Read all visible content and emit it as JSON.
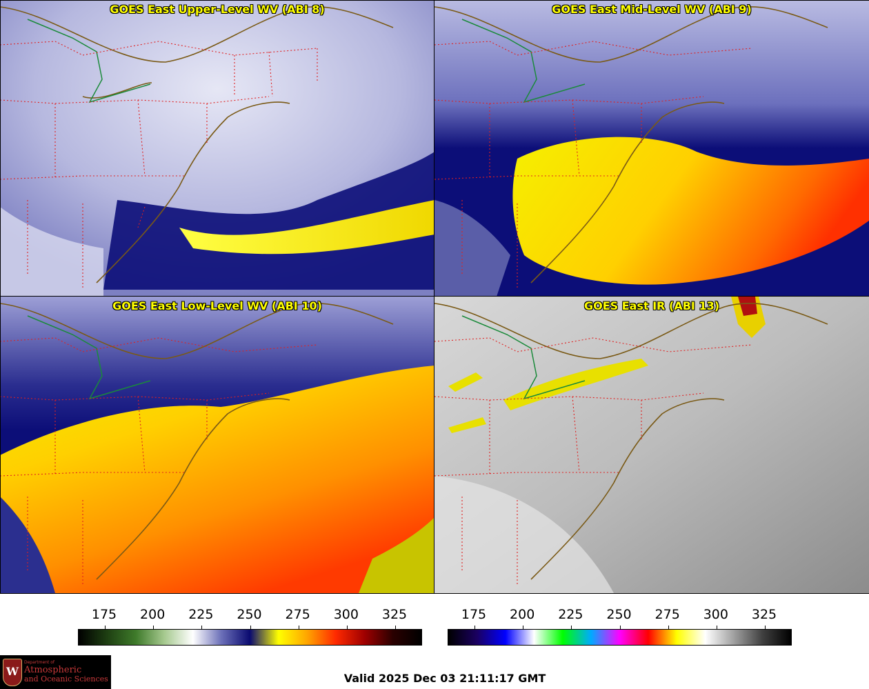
{
  "panels": [
    {
      "title": "GOES East Upper-Level WV (ABI 8)",
      "scale": "wv"
    },
    {
      "title": "GOES East Mid-Level WV (ABI 9)",
      "scale": "wv"
    },
    {
      "title": "GOES East Low-Level WV (ABI 10)",
      "scale": "wv"
    },
    {
      "title": "GOES East IR (ABI 13)",
      "scale": "ir"
    }
  ],
  "colorbars": [
    {
      "name": "water-vapor",
      "ticks": [
        "175",
        "200",
        "225",
        "250",
        "275",
        "300",
        "325"
      ],
      "colors": [
        "#000000",
        "#1e3f12",
        "#3e7a2a",
        "#a6c98f",
        "#ffffff",
        "#6b6fb8",
        "#0a0a70",
        "#ffff00",
        "#ffa500",
        "#ff2a00",
        "#a00000",
        "#2a0000",
        "#000000"
      ]
    },
    {
      "name": "infrared",
      "ticks": [
        "175",
        "200",
        "225",
        "250",
        "275",
        "300",
        "325"
      ],
      "colors": [
        "#000000",
        "#1a0060",
        "#0000ff",
        "#ffffff",
        "#00ff00",
        "#00aaff",
        "#ff00ff",
        "#ff0000",
        "#ffff00",
        "#ffffff",
        "#a0a0a0",
        "#404040",
        "#000000"
      ]
    }
  ],
  "logo": {
    "dept": "Department of",
    "line1": "Atmospheric",
    "line2": "and Oceanic Sciences",
    "crest": "W"
  },
  "valid_time": "Valid 2025 Dec 03 21:11:17 GMT"
}
